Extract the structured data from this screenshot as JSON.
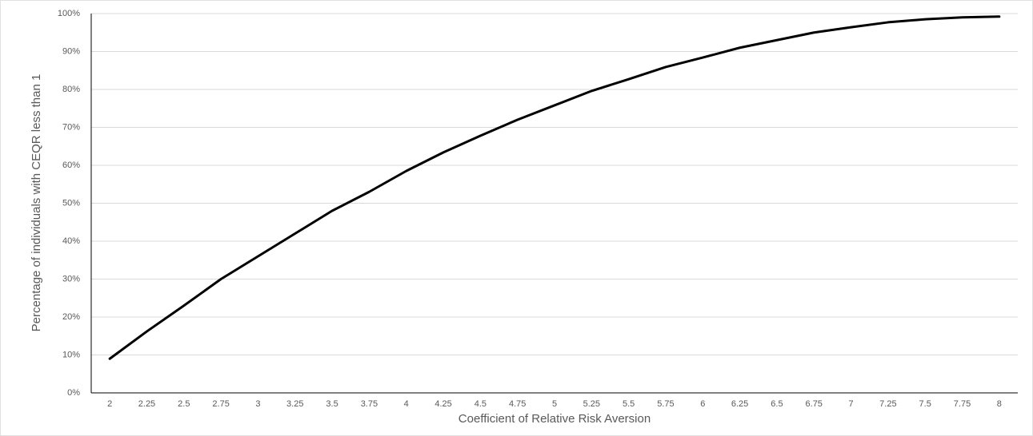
{
  "chart_data": {
    "type": "line",
    "x_label": "Coefficient of Relative Risk Aversion",
    "y_label": "Percentage of individuals with CEQR less than 1",
    "categories": [
      "2",
      "2.25",
      "2.5",
      "2.75",
      "3",
      "3.25",
      "3.5",
      "3.75",
      "4",
      "4.25",
      "4.5",
      "4.75",
      "5",
      "5.25",
      "5.5",
      "5.75",
      "6",
      "6.25",
      "6.5",
      "6.75",
      "7",
      "7.25",
      "7.5",
      "7.75",
      "8"
    ],
    "series": [
      {
        "name": "Percentage of individuals with CEQR less than 1",
        "color": "#000000",
        "values": [
          9,
          16.2,
          23,
          30,
          36,
          42,
          48,
          53,
          58.5,
          63.4,
          67.8,
          72,
          75.8,
          79.6,
          82.7,
          85.9,
          88.4,
          91,
          93,
          95,
          96.4,
          97.7,
          98.5,
          99,
          99.2
        ]
      }
    ],
    "ylim": [
      0,
      100
    ],
    "yticks": [
      {
        "value": 0,
        "label": "0%"
      },
      {
        "value": 10,
        "label": "10%"
      },
      {
        "value": 20,
        "label": "20%"
      },
      {
        "value": 30,
        "label": "30%"
      },
      {
        "value": 40,
        "label": "40%"
      },
      {
        "value": 50,
        "label": "50%"
      },
      {
        "value": 60,
        "label": "60%"
      },
      {
        "value": 70,
        "label": "70%"
      },
      {
        "value": 80,
        "label": "80%"
      },
      {
        "value": 90,
        "label": "90%"
      },
      {
        "value": 100,
        "label": "100%"
      }
    ],
    "grid": true
  }
}
